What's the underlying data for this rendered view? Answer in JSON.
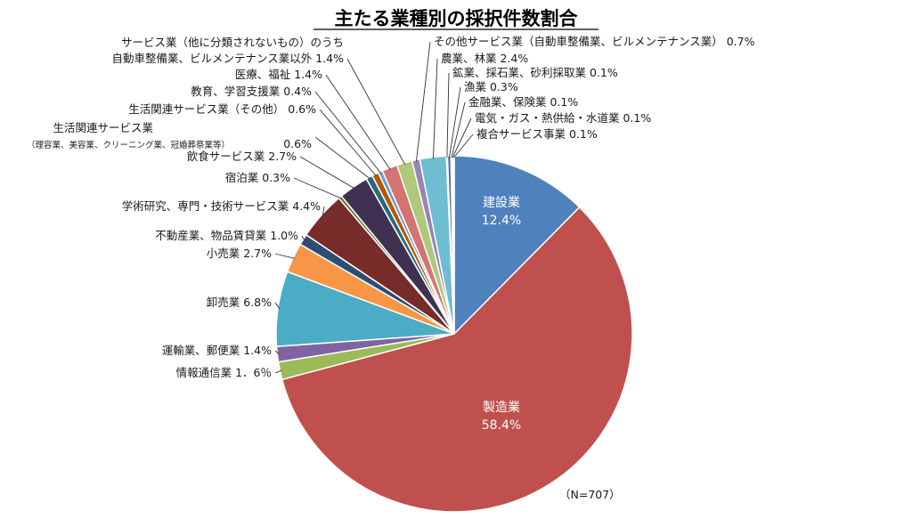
{
  "chart_data": {
    "type": "pie",
    "title": "主たる業種別の採択件数割合",
    "note": "（N=707）",
    "slices": [
      {
        "label": "建設業",
        "value": 12.4,
        "display": "12.4%",
        "color": "#4f81bd",
        "label_mode": "inside"
      },
      {
        "label": "製造業",
        "value": 58.4,
        "display": "58.4%",
        "color": "#c0504d",
        "label_mode": "inside"
      },
      {
        "label": "情報通信業",
        "value": 1.6,
        "display": "1．6％",
        "color": "#9bbb59",
        "label_mode": "outside"
      },
      {
        "label": "運輸業、郵便業",
        "value": 1.4,
        "display": "1.4%",
        "color": "#8064a2",
        "label_mode": "outside"
      },
      {
        "label": "卸売業",
        "value": 6.8,
        "display": "6.8%",
        "color": "#4bacc6",
        "label_mode": "outside"
      },
      {
        "label": "小売業",
        "value": 2.7,
        "display": "2.7%",
        "color": "#f79646",
        "label_mode": "outside"
      },
      {
        "label": "不動産業、物品賃貸業",
        "value": 1.0,
        "display": "1.0%",
        "color": "#2c4d75",
        "label_mode": "outside"
      },
      {
        "label": "学術研究、専門・技術サービス業",
        "value": 4.4,
        "display": "4.4%",
        "color": "#772c2a",
        "label_mode": "outside"
      },
      {
        "label": "宿泊業",
        "value": 0.3,
        "display": "0.3%",
        "color": "#5f7530",
        "label_mode": "outside"
      },
      {
        "label": "飲食サービス業",
        "value": 2.7,
        "display": "2.7%",
        "color": "#403152",
        "label_mode": "outside"
      },
      {
        "label": "生活関連サービス業",
        "sublabel": "（理容業、美容業、クリーニング業、冠婚葬祭業等）",
        "value": 0.6,
        "display": "0.6%",
        "color": "#276a7c",
        "label_mode": "outside"
      },
      {
        "label": "生活関連サービス業（その他）",
        "value": 0.6,
        "display": "0.6%",
        "color": "#b65708",
        "label_mode": "outside"
      },
      {
        "label": "教育、学習支援業",
        "value": 0.4,
        "display": "0.4%",
        "color": "#729aca",
        "label_mode": "outside"
      },
      {
        "label": "医療、福祉",
        "value": 1.4,
        "display": "1.4%",
        "color": "#d37472",
        "label_mode": "outside"
      },
      {
        "label": "サービス業（他に分類されないもの）のうち",
        "sublabel": "自動車整備業、ビルメンテナンス業以外",
        "value": 1.4,
        "display": "1.4%",
        "color": "#afc97a",
        "label_mode": "outside"
      },
      {
        "label": "その他サービス業（自動車整備業、ビルメンテナンス業）",
        "value": 0.7,
        "display": "0.7%",
        "color": "#9983b5",
        "label_mode": "outside"
      },
      {
        "label": "農業、林業",
        "value": 2.4,
        "display": "2.4%",
        "color": "#6fbdd1",
        "label_mode": "outside"
      },
      {
        "label": "鉱業、採石業、砂利採取業",
        "value": 0.1,
        "display": "0.1%",
        "color": "#f9ab6b",
        "label_mode": "outside"
      },
      {
        "label": "漁業",
        "value": 0.3,
        "display": "0.3%",
        "color": "#3d6a9e",
        "label_mode": "outside"
      },
      {
        "label": "金融業、保険業",
        "value": 0.1,
        "display": "0.1%",
        "color": "#a33b38",
        "label_mode": "outside"
      },
      {
        "label": "電気・ガス・熱供給・水道業",
        "value": 0.1,
        "display": "0.1%",
        "color": "#7f9a47",
        "label_mode": "outside"
      },
      {
        "label": "複合サービス事業",
        "value": 0.1,
        "display": "0.1%",
        "color": "#c9c9c9",
        "label_mode": "outside"
      }
    ]
  }
}
